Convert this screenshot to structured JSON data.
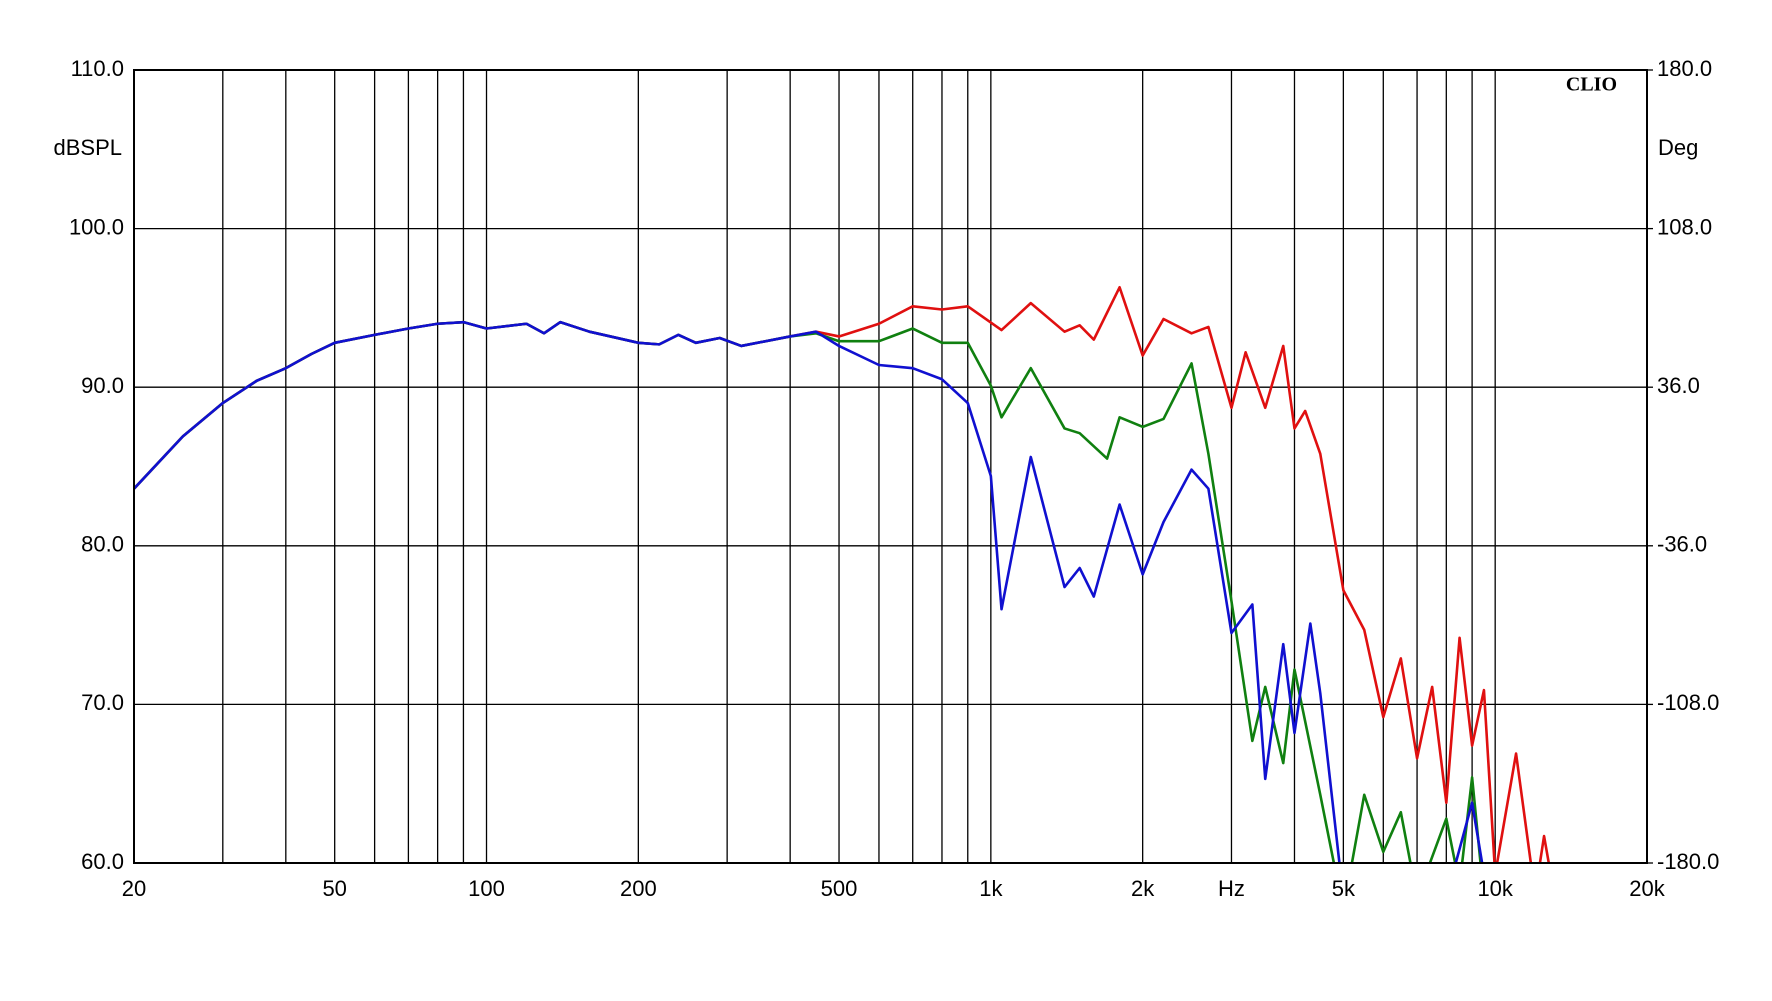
{
  "chart_data": {
    "type": "line",
    "x_scale": "log",
    "grid": true,
    "annotation": "CLIO",
    "ylabel": "dBSPL",
    "y2label": "Deg",
    "xlim": [
      20,
      20000
    ],
    "ylim": [
      60,
      110
    ],
    "y2lim": [
      -180,
      180
    ],
    "xticks": [
      {
        "value": 20,
        "label": "20"
      },
      {
        "value": 50,
        "label": "50"
      },
      {
        "value": 100,
        "label": "100"
      },
      {
        "value": 200,
        "label": "200"
      },
      {
        "value": 500,
        "label": "500"
      },
      {
        "value": 1000,
        "label": "1k"
      },
      {
        "value": 2000,
        "label": "2k"
      },
      {
        "value": 3000,
        "label": "Hz"
      },
      {
        "value": 5000,
        "label": "5k"
      },
      {
        "value": 10000,
        "label": "10k"
      },
      {
        "value": 20000,
        "label": "20k"
      }
    ],
    "xminor": [
      30,
      40,
      60,
      70,
      80,
      90,
      300,
      400,
      600,
      700,
      800,
      900,
      4000,
      6000,
      7000,
      8000,
      9000
    ],
    "yticks": [
      {
        "value": 60,
        "label": "60.0"
      },
      {
        "value": 70,
        "label": "70.0"
      },
      {
        "value": 80,
        "label": "80.0"
      },
      {
        "value": 90,
        "label": "90.0"
      },
      {
        "value": 100,
        "label": "100.0"
      },
      {
        "value": 110,
        "label": "110.0"
      }
    ],
    "y2ticks": [
      {
        "value": -180,
        "label": "-180.0"
      },
      {
        "value": -108,
        "label": "-108.0"
      },
      {
        "value": -36,
        "label": "-36.0"
      },
      {
        "value": 36,
        "label": "36.0"
      },
      {
        "value": 108,
        "label": "108.0"
      },
      {
        "value": 180,
        "label": "180.0"
      }
    ],
    "series": [
      {
        "color": "#e01010",
        "x": [
          20,
          25,
          30,
          35,
          40,
          45,
          50,
          60,
          70,
          80,
          90,
          100,
          120,
          130,
          140,
          160,
          200,
          220,
          240,
          260,
          290,
          320,
          400,
          450,
          500,
          600,
          700,
          800,
          900,
          1050,
          1200,
          1400,
          1500,
          1600,
          1800,
          2000,
          2200,
          2500,
          2700,
          3000,
          3200,
          3500,
          3800,
          4000,
          4200,
          4500,
          5000,
          5500,
          6000,
          6500,
          7000,
          7500,
          8000,
          8500,
          9000,
          9500,
          10000,
          11000,
          12000,
          12500,
          13000
        ],
        "values": [
          83.6,
          86.9,
          89.0,
          90.4,
          91.2,
          92.1,
          92.8,
          93.3,
          93.7,
          94.0,
          94.1,
          93.7,
          94.0,
          93.4,
          94.1,
          93.5,
          92.8,
          92.7,
          93.3,
          92.8,
          93.1,
          92.6,
          93.2,
          93.5,
          93.2,
          94.0,
          95.1,
          94.9,
          95.1,
          93.6,
          95.3,
          93.5,
          93.9,
          93.0,
          96.3,
          92.0,
          94.3,
          93.4,
          93.8,
          88.7,
          92.2,
          88.7,
          92.6,
          87.4,
          88.5,
          85.8,
          77.2,
          74.7,
          69.2,
          72.9,
          66.6,
          71.1,
          63.8,
          74.2,
          67.4,
          70.9,
          59.3,
          66.9,
          58.0,
          61.7,
          58.6
        ]
      },
      {
        "color": "#108010",
        "x": [
          20,
          25,
          30,
          35,
          40,
          45,
          50,
          60,
          70,
          80,
          90,
          100,
          120,
          130,
          140,
          160,
          200,
          220,
          240,
          260,
          290,
          320,
          400,
          450,
          500,
          600,
          700,
          800,
          900,
          1000,
          1050,
          1200,
          1400,
          1500,
          1700,
          1800,
          2000,
          2200,
          2500,
          2700,
          3000,
          3300,
          3500,
          3800,
          4000,
          4500,
          5000,
          5500,
          6000,
          6500,
          7000,
          8000,
          8500,
          9000,
          9500
        ],
        "values": [
          83.6,
          86.9,
          89.0,
          90.4,
          91.2,
          92.1,
          92.8,
          93.3,
          93.7,
          94.0,
          94.1,
          93.7,
          94.0,
          93.4,
          94.1,
          93.5,
          92.8,
          92.7,
          93.3,
          92.8,
          93.1,
          92.6,
          93.2,
          93.4,
          92.9,
          92.9,
          93.7,
          92.8,
          92.8,
          90.1,
          88.1,
          91.2,
          87.4,
          87.1,
          85.5,
          88.1,
          87.5,
          88.0,
          91.5,
          85.8,
          76.5,
          67.7,
          71.1,
          66.3,
          72.2,
          64.3,
          57.0,
          64.3,
          60.7,
          63.2,
          57.8,
          62.8,
          58.6,
          65.4,
          57.8
        ]
      },
      {
        "color": "#1010d0",
        "x": [
          20,
          25,
          30,
          35,
          40,
          45,
          50,
          60,
          70,
          80,
          90,
          100,
          120,
          130,
          140,
          160,
          200,
          220,
          240,
          260,
          290,
          320,
          400,
          450,
          500,
          600,
          700,
          800,
          900,
          1000,
          1050,
          1200,
          1400,
          1500,
          1600,
          1800,
          2000,
          2200,
          2500,
          2700,
          3000,
          3300,
          3500,
          3800,
          4000,
          4300,
          4500,
          5000,
          8000,
          9000,
          9500
        ],
        "values": [
          83.6,
          86.9,
          89.0,
          90.4,
          91.2,
          92.1,
          92.8,
          93.3,
          93.7,
          94.0,
          94.1,
          93.7,
          94.0,
          93.4,
          94.1,
          93.5,
          92.8,
          92.7,
          93.3,
          92.8,
          93.1,
          92.6,
          93.2,
          93.5,
          92.6,
          91.4,
          91.2,
          90.5,
          89.0,
          84.4,
          76.0,
          85.6,
          77.4,
          78.6,
          76.8,
          82.6,
          78.2,
          81.5,
          84.8,
          83.6,
          74.5,
          76.3,
          65.3,
          73.8,
          68.2,
          75.1,
          70.7,
          57.8,
          57.8,
          63.8,
          59.3
        ]
      }
    ]
  }
}
